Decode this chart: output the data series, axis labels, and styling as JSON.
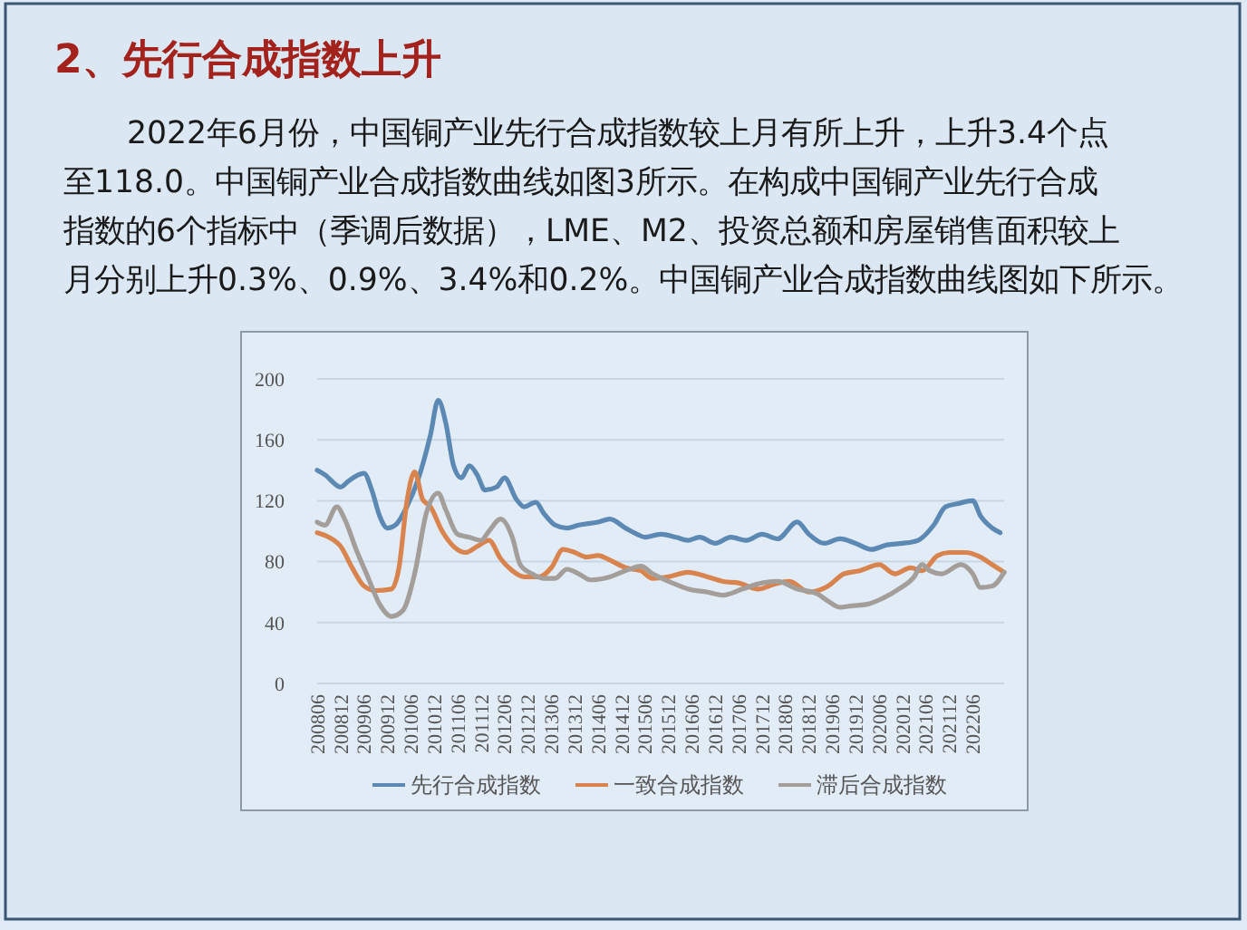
{
  "chart_data": {
    "type": "line",
    "title": "2、先行合成指数上升",
    "annotations": [
      "2022年6月份，中国铜产业先行合成指数较上月有所上升，上升3.4个点",
      "至118.0。中国铜产业合成指数曲线如图3所示。在构成中国铜产业先行合成",
      "指数的6个指标中（季调后数据），LME、M2、投资总额和房屋销售面积较上",
      "月分别上升0.3%、0.9%、3.4%和0.2%。中国铜产业合成指数曲线图如下所示。"
    ],
    "xlim": [
      "2008-06",
      "2023-02"
    ],
    "xticks": [
      {
        "value": "2008-06",
        "label": "200806"
      },
      {
        "value": "2008-12",
        "label": "200812"
      },
      {
        "value": "2009-06",
        "label": "200906"
      },
      {
        "value": "2009-12",
        "label": "200912"
      },
      {
        "value": "2010-06",
        "label": "201006"
      },
      {
        "value": "2010-12",
        "label": "201012"
      },
      {
        "value": "2011-06",
        "label": "201106"
      },
      {
        "value": "2011-12",
        "label": "201112"
      },
      {
        "value": "2012-06",
        "label": "201206"
      },
      {
        "value": "2012-12",
        "label": "201212"
      },
      {
        "value": "2013-06",
        "label": "201306"
      },
      {
        "value": "2013-12",
        "label": "201312"
      },
      {
        "value": "2014-06",
        "label": "201406"
      },
      {
        "value": "2014-12",
        "label": "201412"
      },
      {
        "value": "2015-06",
        "label": "201506"
      },
      {
        "value": "2015-12",
        "label": "201512"
      },
      {
        "value": "2016-06",
        "label": "201606"
      },
      {
        "value": "2016-12",
        "label": "201612"
      },
      {
        "value": "2017-06",
        "label": "201706"
      },
      {
        "value": "2017-12",
        "label": "201712"
      },
      {
        "value": "2018-06",
        "label": "201806"
      },
      {
        "value": "2018-12",
        "label": "201812"
      },
      {
        "value": "2019-06",
        "label": "201906"
      },
      {
        "value": "2019-12",
        "label": "201912"
      },
      {
        "value": "2020-06",
        "label": "202006"
      },
      {
        "value": "2020-12",
        "label": "202012"
      },
      {
        "value": "2021-06",
        "label": "202106"
      },
      {
        "value": "2021-12",
        "label": "202112"
      },
      {
        "value": "2022-06",
        "label": "202206"
      }
    ],
    "ylim": [
      0,
      200
    ],
    "yticks": [
      0,
      40,
      80,
      120,
      160,
      200
    ],
    "grid": "y",
    "legend": "bottom",
    "series": [
      {
        "name": "先行合成指数",
        "color": "#5b89b3",
        "x": [
          "2008-06",
          "2008-08",
          "2008-12",
          "2009-02",
          "2009-06",
          "2009-08",
          "2009-10",
          "2009-12",
          "2010-02",
          "2010-05",
          "2010-08",
          "2010-11",
          "2011-01",
          "2011-03",
          "2011-05",
          "2011-07",
          "2011-09",
          "2011-11",
          "2012-01",
          "2012-04",
          "2012-06",
          "2012-09",
          "2012-11",
          "2013-02",
          "2013-04",
          "2013-07",
          "2013-10",
          "2014-01",
          "2014-06",
          "2014-09",
          "2015-01",
          "2015-04",
          "2015-06",
          "2015-10",
          "2016-02",
          "2016-05",
          "2016-08",
          "2016-12",
          "2017-04",
          "2017-08",
          "2017-12",
          "2018-04",
          "2018-09",
          "2018-12",
          "2019-04",
          "2019-08",
          "2019-12",
          "2020-04",
          "2020-08",
          "2020-12",
          "2021-04",
          "2021-08",
          "2021-11",
          "2022-02",
          "2022-06",
          "2022-08",
          "2022-11",
          "2023-01"
        ],
        "values": [
          140,
          137,
          129,
          133,
          138,
          127,
          110,
          102,
          104,
          116,
          135,
          163,
          186,
          171,
          143,
          135,
          143,
          137,
          127,
          129,
          135,
          121,
          116,
          119,
          112,
          104,
          102,
          104,
          106,
          108,
          102,
          98,
          96,
          98,
          96,
          94,
          96,
          92,
          96,
          94,
          98,
          95,
          106,
          98,
          92,
          95,
          92,
          88,
          91,
          92,
          94,
          104,
          116,
          118,
          120,
          110,
          102,
          99
        ]
      },
      {
        "name": "一致合成指数",
        "color": "#d9844e",
        "x": [
          "2008-06",
          "2008-09",
          "2008-12",
          "2009-03",
          "2009-06",
          "2009-09",
          "2010-01",
          "2010-03",
          "2010-05",
          "2010-07",
          "2010-09",
          "2010-11",
          "2011-02",
          "2011-05",
          "2011-08",
          "2011-11",
          "2012-02",
          "2012-05",
          "2012-08",
          "2012-11",
          "2013-03",
          "2013-06",
          "2013-09",
          "2013-12",
          "2014-03",
          "2014-06",
          "2014-09",
          "2015-01",
          "2015-05",
          "2015-08",
          "2015-12",
          "2016-05",
          "2016-10",
          "2017-02",
          "2017-06",
          "2017-11",
          "2018-03",
          "2018-07",
          "2018-12",
          "2019-05",
          "2019-09",
          "2020-01",
          "2020-06",
          "2020-10",
          "2021-02",
          "2021-05",
          "2021-09",
          "2021-12",
          "2022-04",
          "2022-08",
          "2022-11",
          "2023-02"
        ],
        "values": [
          99,
          96,
          90,
          76,
          64,
          61,
          62,
          76,
          119,
          139,
          121,
          116,
          100,
          90,
          86,
          90,
          94,
          82,
          74,
          70,
          70,
          76,
          88,
          86,
          83,
          84,
          81,
          76,
          74,
          69,
          70,
          73,
          70,
          67,
          66,
          62,
          65,
          67,
          60,
          64,
          72,
          74,
          78,
          72,
          76,
          74,
          84,
          86,
          86,
          83,
          78,
          73
        ]
      },
      {
        "name": "滞后合成指数",
        "color": "#a39e9a",
        "x": [
          "2008-06",
          "2008-08",
          "2008-11",
          "2009-01",
          "2009-04",
          "2009-07",
          "2009-10",
          "2010-01",
          "2010-04",
          "2010-07",
          "2010-10",
          "2011-01",
          "2011-03",
          "2011-06",
          "2011-09",
          "2011-12",
          "2012-02",
          "2012-05",
          "2012-08",
          "2012-10",
          "2013-01",
          "2013-04",
          "2013-07",
          "2013-10",
          "2014-01",
          "2014-04",
          "2014-09",
          "2015-02",
          "2015-05",
          "2015-08",
          "2016-01",
          "2016-05",
          "2016-10",
          "2017-02",
          "2017-07",
          "2017-12",
          "2018-04",
          "2018-09",
          "2019-02",
          "2019-05",
          "2019-08",
          "2019-11",
          "2020-03",
          "2020-07",
          "2020-11",
          "2021-03",
          "2021-05",
          "2021-07",
          "2021-10",
          "2022-03",
          "2022-06",
          "2022-08",
          "2022-11",
          "2023-02"
        ],
        "values": [
          106,
          104,
          116,
          108,
          88,
          70,
          52,
          44,
          48,
          72,
          112,
          125,
          114,
          98,
          96,
          94,
          100,
          108,
          96,
          78,
          72,
          69,
          69,
          75,
          72,
          68,
          70,
          75,
          77,
          72,
          66,
          62,
          60,
          58,
          62,
          66,
          67,
          62,
          59,
          54,
          50,
          51,
          52,
          56,
          62,
          70,
          78,
          74,
          72,
          78,
          72,
          63,
          64,
          73
        ]
      }
    ]
  }
}
